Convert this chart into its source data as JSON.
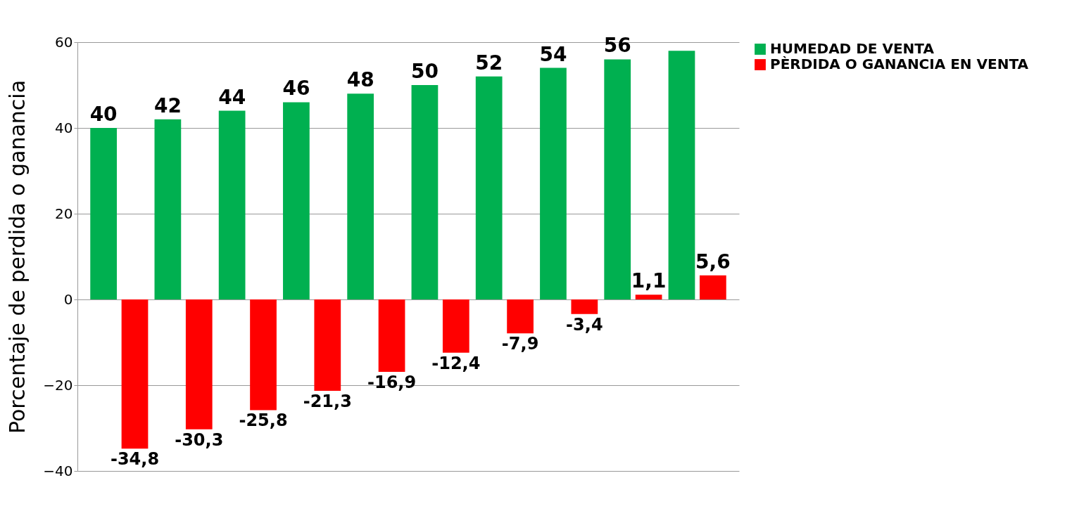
{
  "chart_data": {
    "type": "bar",
    "ylabel": "Porcentaje de perdida o ganancia",
    "categories": [
      null,
      null,
      null,
      null,
      null,
      null,
      null,
      null,
      null,
      null
    ],
    "series": [
      {
        "name": "HUMEDAD DE VENTA",
        "color": "#00b050",
        "values": [
          40,
          42,
          44,
          46,
          48,
          50,
          52,
          54,
          56,
          58
        ],
        "value_labels": [
          "40",
          "42",
          "44",
          "46",
          "48",
          "50",
          "52",
          "54",
          "56",
          null
        ]
      },
      {
        "name": "PÈRDIDA O GANANCIA EN VENTA",
        "color": "#ff0000",
        "values": [
          -34.8,
          -30.3,
          -25.8,
          -21.3,
          -16.9,
          -12.4,
          -7.9,
          -3.4,
          1.1,
          5.6
        ],
        "value_labels": [
          "-34,8",
          "-30,3",
          "-25,8",
          "-21,3",
          "-16,9",
          "-12,4",
          "-7,9",
          "-3,4",
          "1,1",
          "5,6"
        ]
      }
    ],
    "ylim": [
      -40,
      60
    ],
    "yticks": [
      -40,
      -20,
      0,
      20,
      40,
      60
    ],
    "grid": "y",
    "legend": "right",
    "tick_labels": "y"
  }
}
